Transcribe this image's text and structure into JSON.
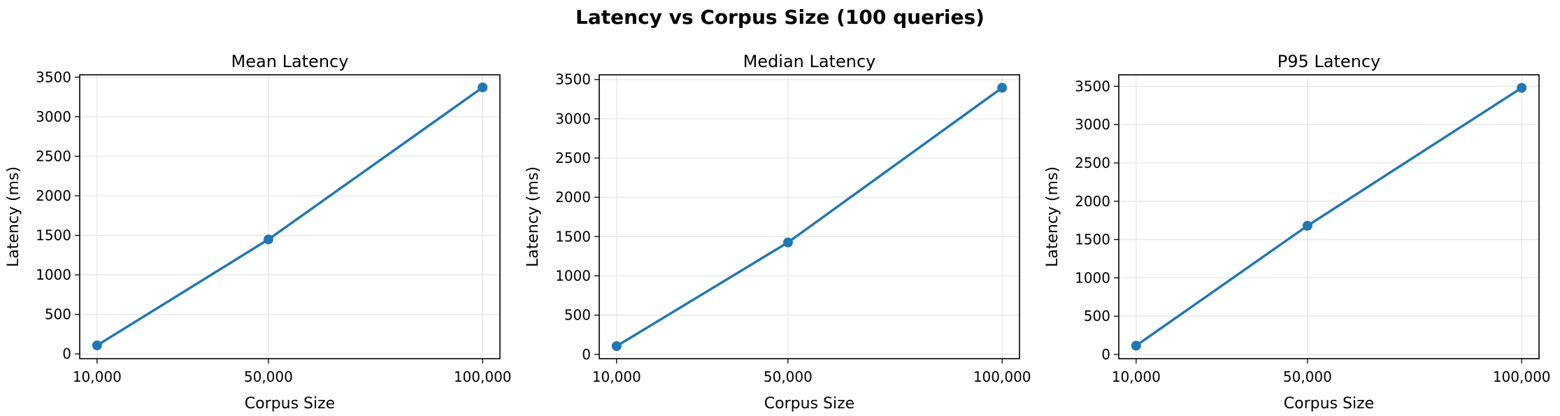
{
  "figure": {
    "suptitle": "Latency vs Corpus Size (100 queries)"
  },
  "style": {
    "line_color": "#1f77b4",
    "grid_color": "#e6e6e6"
  },
  "chart_data": [
    {
      "type": "line",
      "title": "Mean Latency",
      "xlabel": "Corpus Size",
      "ylabel": "Latency (ms)",
      "x": [
        10000,
        50000,
        100000
      ],
      "x_tick_labels": [
        "10,000",
        "50,000",
        "100,000"
      ],
      "y_ticks": [
        0,
        500,
        1000,
        1500,
        2000,
        2500,
        3000,
        3500
      ],
      "ylim": [
        -60,
        3530
      ],
      "grid": true,
      "series": [
        {
          "values": [
            108,
            1448,
            3370
          ]
        }
      ]
    },
    {
      "type": "line",
      "title": "Median Latency",
      "xlabel": "Corpus Size",
      "ylabel": "Latency (ms)",
      "x": [
        10000,
        50000,
        100000
      ],
      "x_tick_labels": [
        "10,000",
        "50,000",
        "100,000"
      ],
      "y_ticks": [
        0,
        500,
        1000,
        1500,
        2000,
        2500,
        3000,
        3500
      ],
      "ylim": [
        -55,
        3560
      ],
      "grid": true,
      "series": [
        {
          "values": [
            105,
            1425,
            3395
          ]
        }
      ]
    },
    {
      "type": "line",
      "title": "P95 Latency",
      "xlabel": "Corpus Size",
      "ylabel": "Latency (ms)",
      "x": [
        10000,
        50000,
        100000
      ],
      "x_tick_labels": [
        "10,000",
        "50,000",
        "100,000"
      ],
      "y_ticks": [
        0,
        500,
        1000,
        1500,
        2000,
        2500,
        3000,
        3500
      ],
      "ylim": [
        -55,
        3650
      ],
      "grid": true,
      "series": [
        {
          "values": [
            115,
            1680,
            3480
          ]
        }
      ]
    }
  ]
}
